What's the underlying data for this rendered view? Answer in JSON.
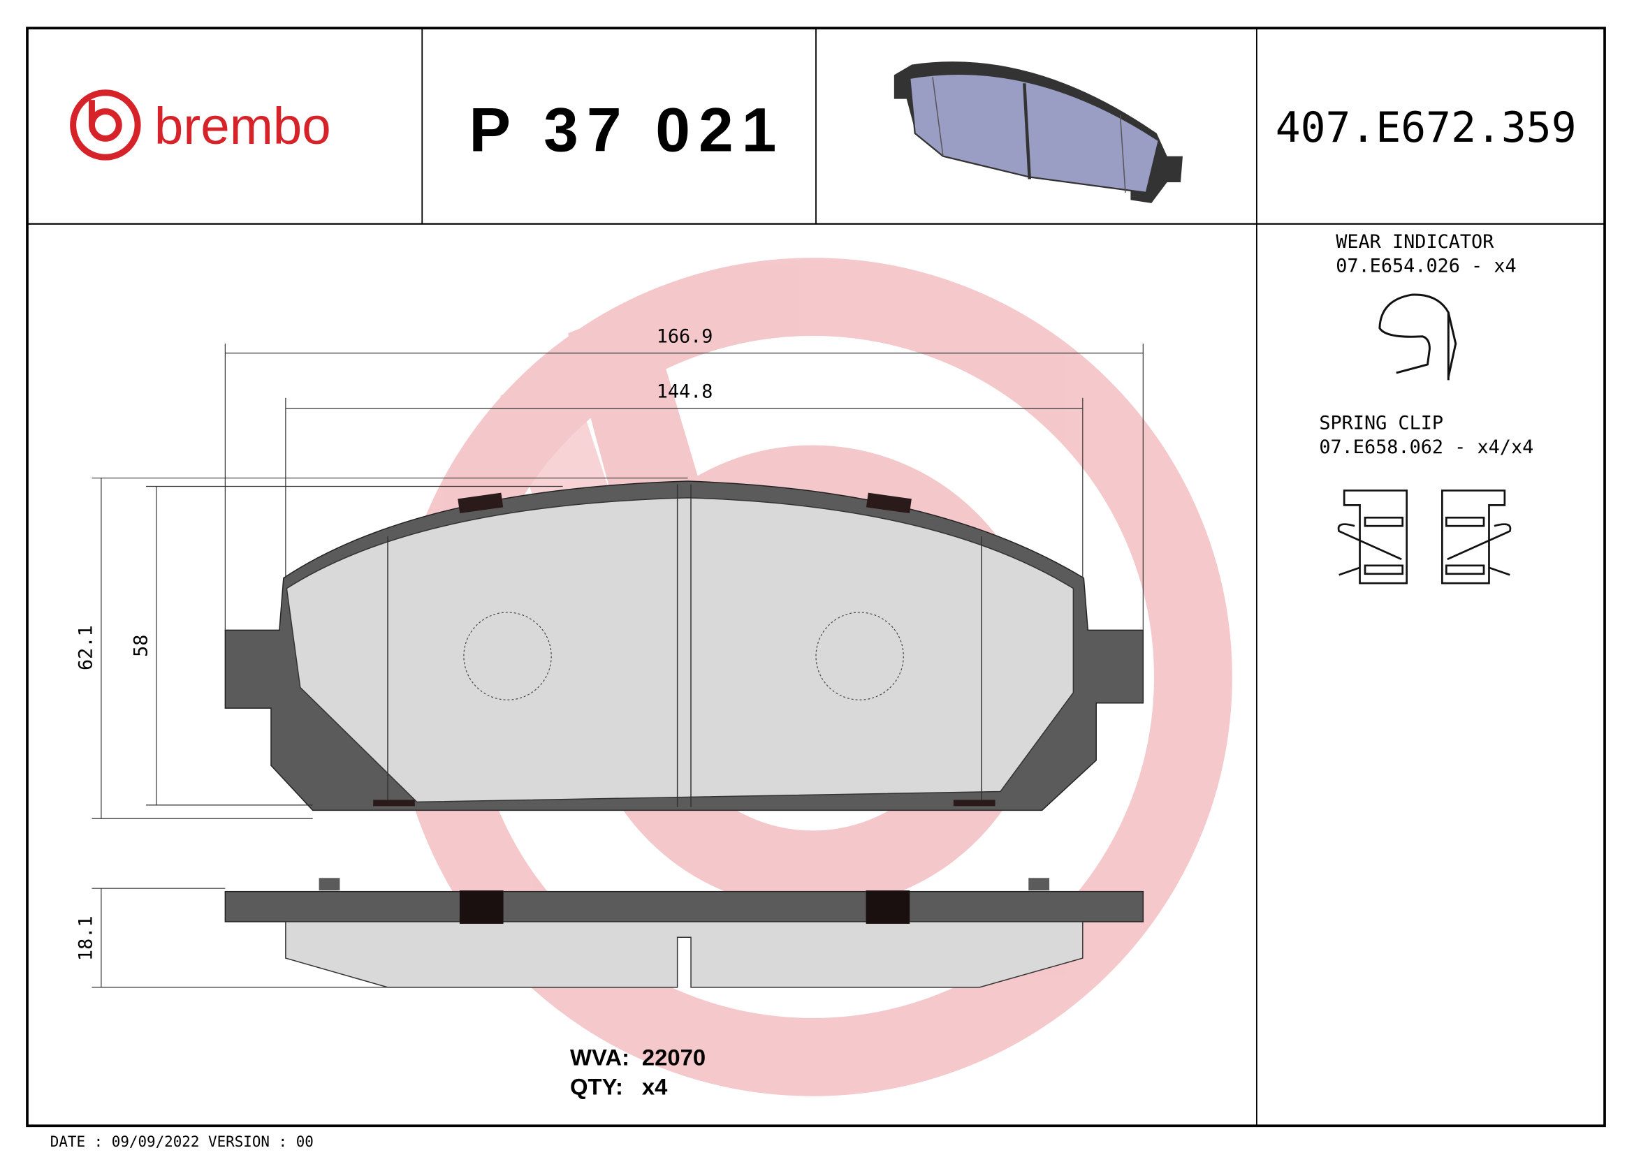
{
  "header": {
    "brand": "brembo",
    "part_number": "P 37 021",
    "reference": "407.E672.359"
  },
  "dimensions": {
    "overall_width": "166.9",
    "pad_width": "144.8",
    "overall_height": "62.1",
    "pad_height": "58",
    "thickness": "18.1"
  },
  "accessories": {
    "wear_indicator_title": "WEAR INDICATOR",
    "wear_indicator_code": "07.E654.026 - x4",
    "spring_clip_title": "SPRING CLIP",
    "spring_clip_code": "07.E658.062 - x4/x4"
  },
  "info": {
    "wva_label": "WVA:",
    "wva_value": "22070",
    "qty_label": "QTY:",
    "qty_value": "x4"
  },
  "footer": {
    "date_version": "DATE : 09/09/2022 VERSION : 00"
  },
  "colors": {
    "brand_red": "#d6232a",
    "watermark": "#f3c9cc",
    "backplate": "#5b5b5b",
    "friction": "#d9d9d9",
    "thumbnail": "#9a9ec4"
  }
}
